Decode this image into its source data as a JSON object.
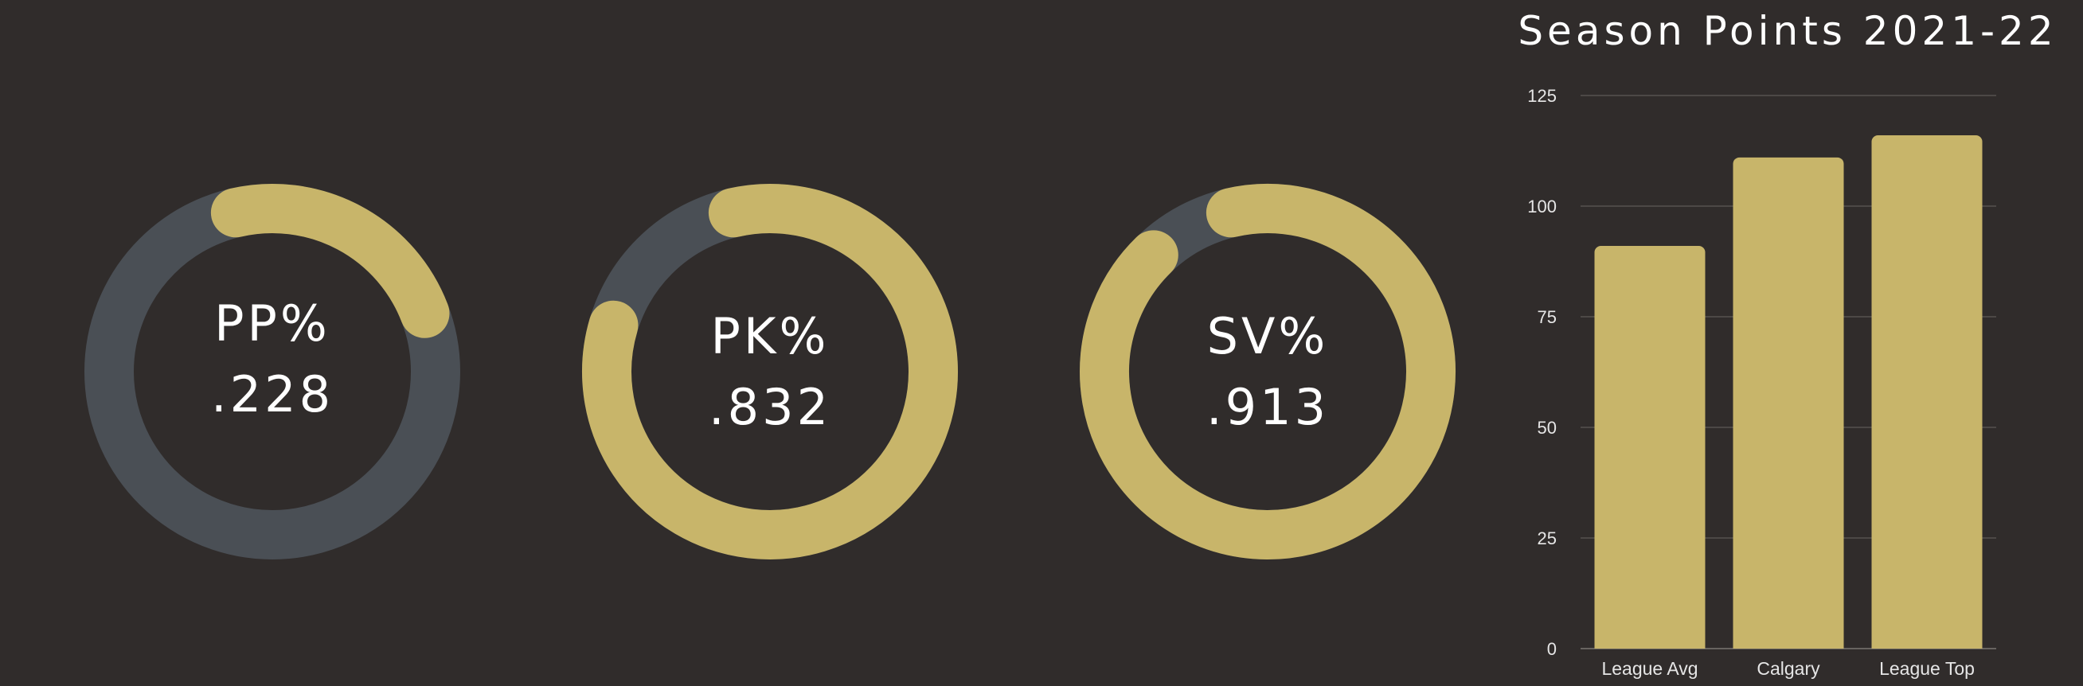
{
  "colors": {
    "background": "#302c2b",
    "track": "#4a4f55",
    "accent": "#c8b56a",
    "text": "#ffffff",
    "grid": "#55524f"
  },
  "gauges": [
    {
      "label": "PP%",
      "value_text": ".228",
      "value": 0.228
    },
    {
      "label": "PK%",
      "value_text": ".832",
      "value": 0.832
    },
    {
      "label": "SV%",
      "value_text": ".913",
      "value": 0.913
    }
  ],
  "chart_data": {
    "type": "bar",
    "title": "Season Points 2021-22",
    "categories": [
      "League Avg",
      "Calgary",
      "League Top"
    ],
    "values": [
      91,
      111,
      116
    ],
    "ylim": [
      0,
      125
    ],
    "yticks": [
      0,
      25,
      50,
      75,
      100,
      125
    ],
    "xlabel": "",
    "ylabel": "",
    "grid": true
  }
}
